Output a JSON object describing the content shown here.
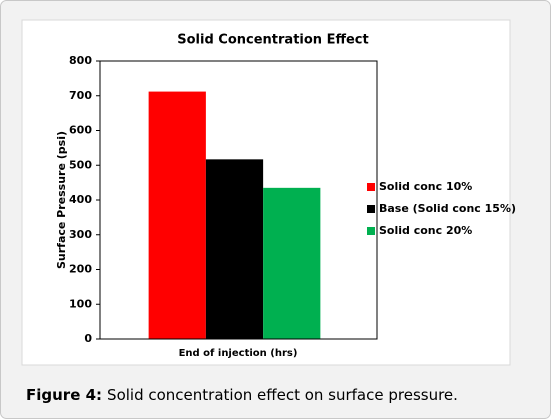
{
  "chart_data": {
    "type": "bar",
    "title": "Solid Concentration Effect",
    "x_label": "End of injection (hrs)",
    "y_label": "Surface Pressure (psi)",
    "categories": [
      null
    ],
    "series": [
      {
        "name": "Solid conc 10%",
        "color": "#ff0000",
        "values": [
          712
        ]
      },
      {
        "name": "Base (Solid conc 15%)",
        "color": "#000000",
        "values": [
          517
        ]
      },
      {
        "name": "Solid conc 20%",
        "color": "#00b050",
        "values": [
          435
        ]
      }
    ],
    "ylim": [
      0,
      800
    ],
    "yticks": [
      0,
      100,
      200,
      300,
      400,
      500,
      600,
      700,
      800
    ],
    "grid": false,
    "legend": "right"
  },
  "caption": {
    "label": "Figure 4:",
    "text": "Solid concentration effect on surface pressure."
  }
}
